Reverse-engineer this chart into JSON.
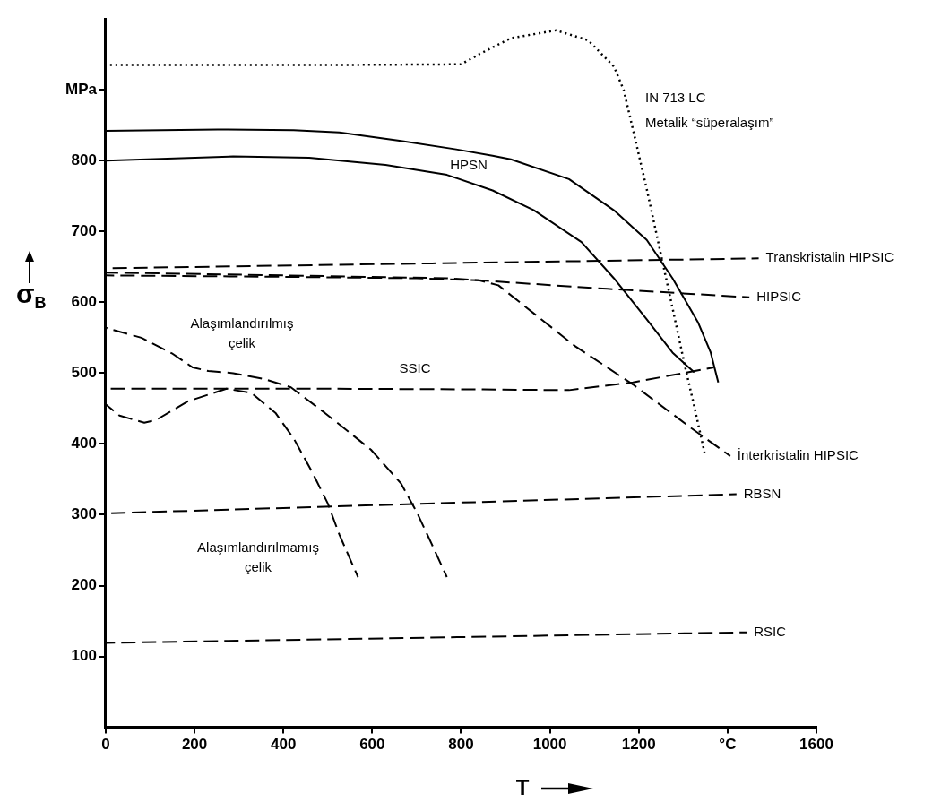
{
  "chart_data": {
    "type": "line",
    "xlabel": "T",
    "ylabel": "σ$_{B}$",
    "xlim": [
      0,
      1600
    ],
    "ylim": [
      0,
      1000
    ],
    "xticks": [
      0,
      200,
      400,
      600,
      800,
      1000,
      1200,
      {
        "value": 1400,
        "label": "°C"
      },
      1600
    ],
    "yticks": [
      100,
      200,
      300,
      400,
      500,
      600,
      700,
      800,
      {
        "value": 900,
        "label": "MPa"
      }
    ],
    "grid": false,
    "legend": false,
    "marker": "none",
    "annotations": [
      "Metalik “süperalaşım”"
    ],
    "series": [
      {
        "name": "IN 713 LC",
        "color": "#000000",
        "line_style": "dotted",
        "x": [
          0,
          500,
          800,
          840,
          912,
          1014,
          1086,
          1144,
          1166,
          1187,
          1218,
          1247,
          1276,
          1305,
          1325,
          1348
        ],
        "values": [
          935,
          935,
          936,
          950,
          973,
          984,
          970,
          933,
          900,
          844,
          760,
          676,
          592,
          507,
          453,
          388
        ]
      },
      {
        "name": "HPSN",
        "color": "#000000",
        "line_style": "solid",
        "x": [
          0,
          252,
          423,
          526,
          665,
          789,
          871,
          912,
          1043,
          1144,
          1218,
          1276,
          1334,
          1362,
          1379
        ],
        "values": [
          842,
          844,
          843,
          840,
          828,
          816,
          807,
          802,
          774,
          730,
          688,
          634,
          571,
          529,
          487
        ]
      },
      {
        "color": "#000000",
        "line_style": "solid",
        "x": [
          0,
          287,
          458,
          630,
          768,
          871,
          964,
          1071,
          1144,
          1218,
          1276,
          1325
        ],
        "values": [
          800,
          806,
          804,
          794,
          780,
          758,
          730,
          685,
          634,
          576,
          529,
          501
        ]
      },
      {
        "name": "Transkristalin HIPSIC",
        "color": "#000000",
        "line_style": "dashed",
        "x": [
          0,
          735,
          1470
        ],
        "values": [
          648,
          655,
          662
        ]
      },
      {
        "name": "HIPSIC",
        "color": "#000000",
        "line_style": "dashed",
        "x": [
          0,
          400,
          768,
          1129,
          1449
        ],
        "values": [
          642,
          638,
          634,
          619,
          607
        ]
      },
      {
        "name": "İnterkristalin HIPSIC",
        "color": "#000000",
        "line_style": "dashed",
        "x": [
          0,
          400,
          700,
          840,
          884,
          1057,
          1187,
          1319,
          1406
        ],
        "values": [
          638,
          636,
          634,
          631,
          624,
          538,
          484,
          422,
          383
        ]
      },
      {
        "name": "SSIC",
        "color": "#000000",
        "line_style": "dashed",
        "x": [
          0,
          500,
          850,
          1043,
          1187,
          1369
        ],
        "values": [
          478,
          478,
          477,
          476,
          487,
          508
        ]
      },
      {
        "name": "RBSN",
        "color": "#000000",
        "line_style": "dashed",
        "x": [
          0,
          1420
        ],
        "values": [
          302,
          329
        ]
      },
      {
        "name": "RSIC",
        "color": "#000000",
        "line_style": "dashed",
        "x": [
          0,
          1443
        ],
        "values": [
          119,
          134
        ]
      },
      {
        "name": "Alaşımlandırılmış çelik",
        "color": "#000000",
        "line_style": "dashed",
        "x": [
          0,
          80,
          149,
          196,
          231,
          287,
          355,
          417,
          493,
          597,
          665,
          700,
          733,
          768
        ],
        "values": [
          564,
          550,
          528,
          508,
          503,
          500,
          492,
          480,
          444,
          392,
          344,
          304,
          260,
          212
        ]
      },
      {
        "name": "Alaşımlandırılmamış çelik",
        "color": "#000000",
        "line_style": "dashed",
        "x": [
          0,
          31,
          87,
          114,
          184,
          272,
          328,
          382,
          423,
          465,
          500,
          526,
          568
        ],
        "values": [
          456,
          440,
          430,
          434,
          460,
          478,
          472,
          444,
          408,
          360,
          316,
          272,
          212
        ]
      }
    ]
  }
}
